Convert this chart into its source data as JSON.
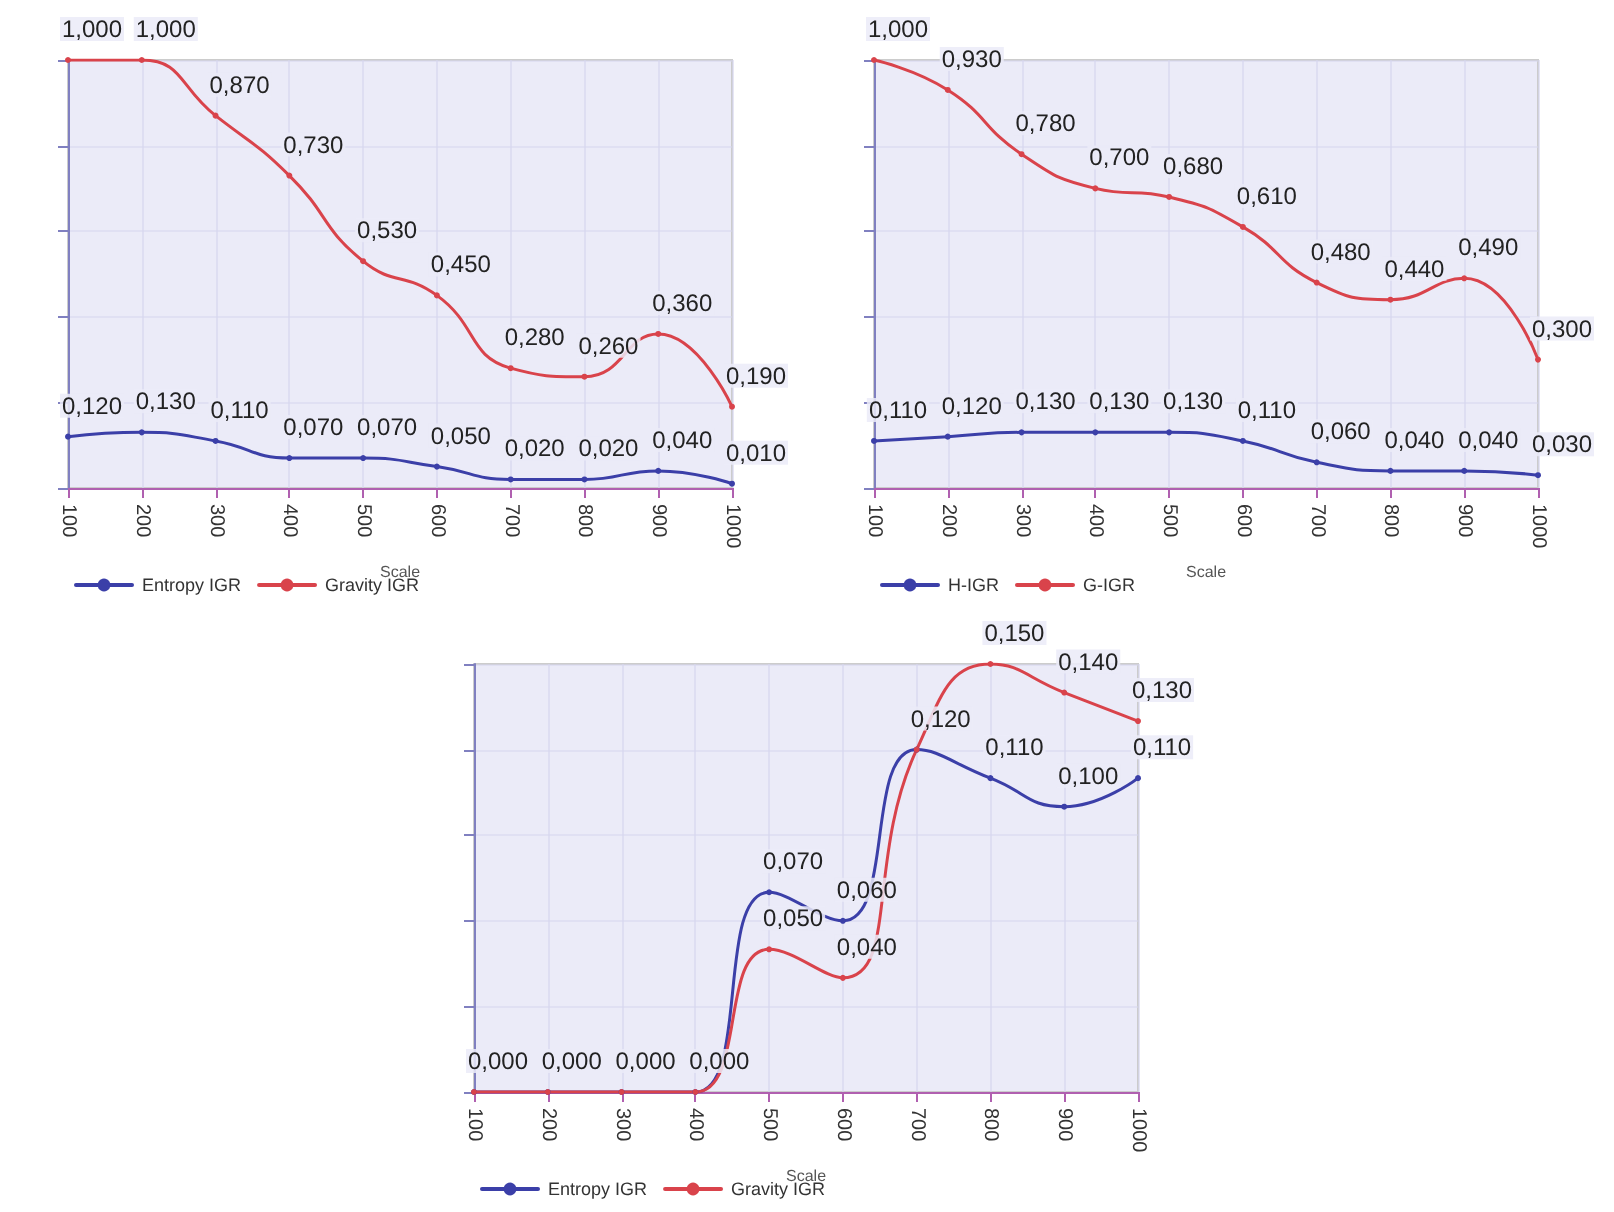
{
  "chart_data": [
    {
      "type": "line",
      "xlabel": "Scale",
      "x": [
        100,
        200,
        300,
        400,
        500,
        600,
        700,
        800,
        900,
        1000
      ],
      "xlim": [
        100,
        1000
      ],
      "xticks": [
        100,
        200,
        300,
        400,
        500,
        600,
        700,
        800,
        900,
        1000
      ],
      "tick_labels": "x",
      "grid": true,
      "legend": "bottom left",
      "marker": "circle",
      "line_style": "solid",
      "series": [
        {
          "name": "Entropy IGR",
          "color": "#3b3fa8",
          "values": [
            0.12,
            0.13,
            0.11,
            0.07,
            0.07,
            0.05,
            0.02,
            0.02,
            0.04,
            0.01
          ],
          "value_labels": [
            "0,120",
            "0,130",
            "0,110",
            "0,070",
            "0,070",
            "0,050",
            "0,020",
            "0,020",
            "0,040",
            "0,010"
          ]
        },
        {
          "name": "Gravity IGR",
          "color": "#d9434b",
          "values": [
            1.0,
            1.0,
            0.87,
            0.73,
            0.53,
            0.45,
            0.28,
            0.26,
            0.36,
            0.19
          ],
          "value_labels": [
            "1,000",
            "1,000",
            "0,870",
            "0,730",
            "0,530",
            "0,450",
            "0,280",
            "0,260",
            "0,360",
            "0,190"
          ]
        }
      ]
    },
    {
      "type": "line",
      "xlabel": "Scale",
      "x": [
        100,
        200,
        300,
        400,
        500,
        600,
        700,
        800,
        900,
        1000
      ],
      "xlim": [
        100,
        1000
      ],
      "xticks": [
        100,
        200,
        300,
        400,
        500,
        600,
        700,
        800,
        900,
        1000
      ],
      "tick_labels": "x",
      "grid": true,
      "legend": "bottom left",
      "marker": "circle",
      "line_style": "solid",
      "series": [
        {
          "name": "H-IGR",
          "color": "#3b3fa8",
          "values": [
            0.11,
            0.12,
            0.13,
            0.13,
            0.13,
            0.11,
            0.06,
            0.04,
            0.04,
            0.03
          ],
          "value_labels": [
            "0,110",
            "0,120",
            "0,130",
            "0,130",
            "0,130",
            "0,110",
            "0,060",
            "0,040",
            "0,040",
            "0,030"
          ]
        },
        {
          "name": "G-IGR",
          "color": "#d9434b",
          "values": [
            1.0,
            0.93,
            0.78,
            0.7,
            0.68,
            0.61,
            0.48,
            0.44,
            0.49,
            0.3
          ],
          "value_labels": [
            "1,000",
            "0,930",
            "0,780",
            "0,700",
            "0,680",
            "0,610",
            "0,480",
            "0,440",
            "0,490",
            "0,300"
          ]
        }
      ]
    },
    {
      "type": "line",
      "xlabel": "Scale",
      "x": [
        100,
        200,
        300,
        400,
        500,
        600,
        700,
        800,
        900,
        1000
      ],
      "xlim": [
        100,
        1000
      ],
      "xticks": [
        100,
        200,
        300,
        400,
        500,
        600,
        700,
        800,
        900,
        1000
      ],
      "tick_labels": "x",
      "grid": true,
      "legend": "bottom left",
      "marker": "circle",
      "line_style": "solid",
      "series": [
        {
          "name": "Entropy IGR",
          "color": "#3b3fa8",
          "values": [
            0,
            0,
            0,
            0,
            0.07,
            0.06,
            0.12,
            0.11,
            0.1,
            0.11
          ],
          "value_labels": [
            "0,000",
            "0,000",
            "0,000",
            "0,000",
            "0,070",
            "0,060",
            "0,120",
            "0,110",
            "0,100",
            "0,110"
          ]
        },
        {
          "name": "Gravity IGR",
          "color": "#d9434b",
          "values": [
            0,
            0,
            0,
            0,
            0.05,
            0.04,
            0.12,
            0.15,
            0.14,
            0.13
          ],
          "value_labels": [
            null,
            null,
            null,
            null,
            "0,050",
            "0,040",
            null,
            "0,150",
            "0,140",
            "0,130"
          ]
        }
      ]
    }
  ]
}
